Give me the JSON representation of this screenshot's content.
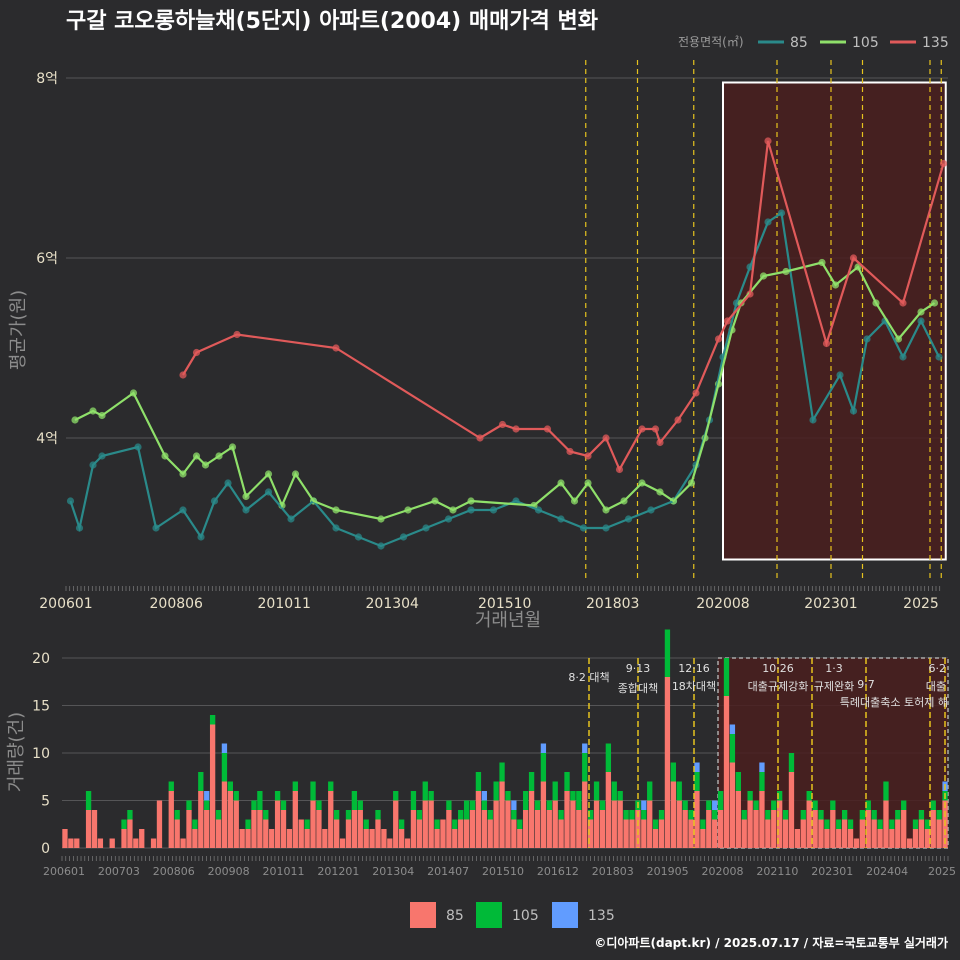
{
  "title": "구갈 코오롱하늘채(5단지) 아파트(2004) 매매가격 변화",
  "footer": "©디아파트(dapt.kr) / 2025.07.17 / 자료=국토교통부 실거래가",
  "colors": {
    "background": "#2b2b2d",
    "s85": "#2a8a8a",
    "s105": "#8fe06a",
    "s135": "#e05a5a",
    "bar85": "#f8766d",
    "bar105": "#00ba38",
    "bar135": "#619cff",
    "event_line": "#e6c31e",
    "highlight": "#4a1e1e"
  },
  "top_chart": {
    "ylabel": "평균가(원)",
    "xlabel": "거래년월",
    "y_ticks": [
      {
        "v": 4,
        "label": "4억"
      },
      {
        "v": 6,
        "label": "6억"
      },
      {
        "v": 8,
        "label": "8억"
      }
    ],
    "x_ticks": [
      "200601",
      "200806",
      "201011",
      "201304",
      "201510",
      "201803",
      "202008",
      "202301",
      "2025"
    ],
    "legend_title": "전용면적(㎡)",
    "legend": [
      "85",
      "105",
      "135"
    ]
  },
  "bottom_chart": {
    "ylabel": "거래량(건)",
    "y_ticks": [
      "0",
      "5",
      "10",
      "15",
      "20"
    ],
    "x_ticks": [
      "200601",
      "200703",
      "200806",
      "200908",
      "201011",
      "201201",
      "201304",
      "201407",
      "201510",
      "201612",
      "201803",
      "201905",
      "202008",
      "202110",
      "202301",
      "202404",
      "2025"
    ],
    "legend": [
      "85",
      "105",
      "135"
    ],
    "events": [
      {
        "date": "8·2",
        "text": "8·2 대책"
      },
      {
        "date": "9·13",
        "text": "종합대책"
      },
      {
        "date": "12·16",
        "text": "18차대책"
      },
      {
        "date": "10·26",
        "text": "대출규제강화"
      },
      {
        "date": "1·3",
        "text": "규제완화"
      },
      {
        "date": "9·7",
        "text": "특례대출축소 토허제 해"
      },
      {
        "date": "6·2",
        "text": "대출"
      }
    ]
  },
  "chart_data": [
    {
      "type": "line",
      "title": "구갈 코오롱하늘채(5단지) 아파트(2004) 매매가격 변화",
      "xlabel": "거래년월",
      "ylabel": "평균가(원)",
      "ylim": [
        2.4,
        8.2
      ],
      "xlim": [
        2006.0,
        2025.6
      ],
      "unit": "억",
      "series": [
        {
          "name": "85",
          "points": [
            [
              2006.1,
              3.3
            ],
            [
              2006.3,
              3.0
            ],
            [
              2006.6,
              3.7
            ],
            [
              2006.8,
              3.8
            ],
            [
              2007.6,
              3.9
            ],
            [
              2008.0,
              3.0
            ],
            [
              2008.6,
              3.2
            ],
            [
              2009.0,
              2.9
            ],
            [
              2009.3,
              3.3
            ],
            [
              2009.6,
              3.5
            ],
            [
              2010.0,
              3.2
            ],
            [
              2010.5,
              3.4
            ],
            [
              2011.0,
              3.1
            ],
            [
              2011.5,
              3.3
            ],
            [
              2012.0,
              3.0
            ],
            [
              2012.5,
              2.9
            ],
            [
              2013.0,
              2.8
            ],
            [
              2013.5,
              2.9
            ],
            [
              2014.0,
              3.0
            ],
            [
              2014.5,
              3.1
            ],
            [
              2015.0,
              3.2
            ],
            [
              2015.5,
              3.2
            ],
            [
              2016.0,
              3.3
            ],
            [
              2016.5,
              3.2
            ],
            [
              2017.0,
              3.1
            ],
            [
              2017.5,
              3.0
            ],
            [
              2018.0,
              3.0
            ],
            [
              2018.5,
              3.1
            ],
            [
              2019.0,
              3.2
            ],
            [
              2019.5,
              3.3
            ],
            [
              2020.0,
              3.7
            ],
            [
              2020.3,
              4.2
            ],
            [
              2020.6,
              4.9
            ],
            [
              2020.9,
              5.5
            ],
            [
              2021.2,
              5.9
            ],
            [
              2021.6,
              6.4
            ],
            [
              2021.9,
              6.5
            ],
            [
              2022.6,
              4.2
            ],
            [
              2023.2,
              4.7
            ],
            [
              2023.5,
              4.3
            ],
            [
              2023.8,
              5.1
            ],
            [
              2024.2,
              5.3
            ],
            [
              2024.6,
              4.9
            ],
            [
              2025.0,
              5.3
            ],
            [
              2025.4,
              4.9
            ]
          ]
        },
        {
          "name": "105",
          "points": [
            [
              2006.2,
              4.2
            ],
            [
              2006.6,
              4.3
            ],
            [
              2006.8,
              4.25
            ],
            [
              2007.5,
              4.5
            ],
            [
              2008.2,
              3.8
            ],
            [
              2008.6,
              3.6
            ],
            [
              2008.9,
              3.8
            ],
            [
              2009.1,
              3.7
            ],
            [
              2009.4,
              3.8
            ],
            [
              2009.7,
              3.9
            ],
            [
              2010.0,
              3.35
            ],
            [
              2010.5,
              3.6
            ],
            [
              2010.8,
              3.25
            ],
            [
              2011.1,
              3.6
            ],
            [
              2011.5,
              3.3
            ],
            [
              2012.0,
              3.2
            ],
            [
              2013.0,
              3.1
            ],
            [
              2013.6,
              3.2
            ],
            [
              2014.2,
              3.3
            ],
            [
              2014.6,
              3.2
            ],
            [
              2015.0,
              3.3
            ],
            [
              2016.4,
              3.25
            ],
            [
              2017.0,
              3.5
            ],
            [
              2017.3,
              3.3
            ],
            [
              2017.6,
              3.5
            ],
            [
              2018.0,
              3.2
            ],
            [
              2018.4,
              3.3
            ],
            [
              2018.8,
              3.5
            ],
            [
              2019.2,
              3.4
            ],
            [
              2019.5,
              3.3
            ],
            [
              2019.9,
              3.5
            ],
            [
              2020.2,
              4.0
            ],
            [
              2020.5,
              4.6
            ],
            [
              2020.8,
              5.2
            ],
            [
              2021.0,
              5.5
            ],
            [
              2021.5,
              5.8
            ],
            [
              2022.0,
              5.85
            ],
            [
              2022.8,
              5.95
            ],
            [
              2023.1,
              5.7
            ],
            [
              2023.6,
              5.9
            ],
            [
              2024.0,
              5.5
            ],
            [
              2024.5,
              5.1
            ],
            [
              2025.0,
              5.4
            ],
            [
              2025.3,
              5.5
            ]
          ]
        },
        {
          "name": "135",
          "points": [
            [
              2008.6,
              4.7
            ],
            [
              2008.9,
              4.95
            ],
            [
              2009.8,
              5.15
            ],
            [
              2012.0,
              5.0
            ],
            [
              2015.2,
              4.0
            ],
            [
              2015.7,
              4.15
            ],
            [
              2016.0,
              4.1
            ],
            [
              2016.7,
              4.1
            ],
            [
              2017.2,
              3.85
            ],
            [
              2017.6,
              3.8
            ],
            [
              2018.0,
              4.0
            ],
            [
              2018.3,
              3.65
            ],
            [
              2018.8,
              4.1
            ],
            [
              2019.1,
              4.1
            ],
            [
              2019.2,
              3.95
            ],
            [
              2019.6,
              4.2
            ],
            [
              2020.0,
              4.5
            ],
            [
              2020.5,
              5.1
            ],
            [
              2020.7,
              5.3
            ],
            [
              2021.2,
              5.6
            ],
            [
              2021.6,
              7.3
            ],
            [
              2022.9,
              5.05
            ],
            [
              2023.5,
              6.0
            ],
            [
              2024.6,
              5.5
            ],
            [
              2025.5,
              7.05
            ]
          ]
        }
      ]
    },
    {
      "type": "bar",
      "title": "거래량",
      "ylabel": "거래량(건)",
      "ylim": [
        0,
        20
      ],
      "unit": "건",
      "series": [
        {
          "name": "85",
          "values": [
            2,
            1,
            1,
            0,
            4,
            4,
            1,
            0,
            1,
            0,
            2,
            3,
            1,
            2,
            0,
            1,
            5,
            0,
            6,
            3,
            1,
            4,
            2,
            6,
            4,
            13,
            3,
            7,
            6,
            5,
            2,
            2,
            4,
            4,
            3,
            2,
            5,
            4,
            2,
            6,
            3,
            2,
            5,
            4,
            2,
            6,
            3,
            1,
            3,
            4,
            4,
            2,
            2,
            3,
            2,
            1,
            5,
            2,
            1,
            4,
            3,
            5,
            5,
            2,
            3,
            4,
            2,
            3,
            3,
            4,
            6,
            4,
            3,
            5,
            7,
            5,
            3,
            2,
            4,
            6,
            4,
            7,
            4,
            5,
            3,
            6,
            5,
            4,
            7,
            3,
            5,
            4,
            8,
            5,
            5,
            3,
            3,
            4,
            3,
            5,
            2,
            3,
            18,
            7,
            5,
            4,
            3,
            6,
            2,
            4,
            3,
            4,
            16,
            9,
            6,
            3,
            5,
            4,
            6,
            3,
            4,
            5,
            3,
            8,
            2,
            3,
            5,
            4,
            3,
            2,
            4,
            2,
            3,
            2,
            1,
            3,
            4,
            3,
            2,
            5,
            2,
            3,
            4,
            1,
            2,
            3,
            2,
            4,
            3,
            5
          ]
        },
        {
          "name": "105",
          "values": [
            0,
            0,
            0,
            0,
            2,
            0,
            0,
            0,
            0,
            0,
            1,
            1,
            0,
            0,
            0,
            0,
            0,
            0,
            1,
            1,
            0,
            1,
            1,
            2,
            1,
            1,
            1,
            3,
            1,
            1,
            0,
            1,
            1,
            2,
            1,
            0,
            1,
            1,
            0,
            1,
            0,
            1,
            2,
            1,
            0,
            1,
            1,
            0,
            1,
            2,
            1,
            1,
            0,
            1,
            0,
            0,
            1,
            1,
            0,
            2,
            1,
            2,
            1,
            1,
            0,
            1,
            1,
            1,
            2,
            1,
            2,
            1,
            1,
            2,
            2,
            1,
            1,
            1,
            2,
            2,
            1,
            3,
            1,
            2,
            1,
            2,
            1,
            2,
            3,
            1,
            2,
            1,
            3,
            2,
            1,
            1,
            1,
            1,
            1,
            2,
            1,
            1,
            5,
            2,
            2,
            1,
            1,
            2,
            1,
            1,
            1,
            2,
            4,
            3,
            2,
            1,
            1,
            1,
            2,
            1,
            1,
            1,
            1,
            2,
            0,
            1,
            1,
            1,
            1,
            1,
            1,
            1,
            1,
            1,
            0,
            1,
            1,
            1,
            1,
            2,
            1,
            1,
            1,
            0,
            1,
            1,
            1,
            1,
            1,
            1
          ]
        },
        {
          "name": "135",
          "values": [
            0,
            0,
            0,
            0,
            0,
            0,
            0,
            0,
            0,
            0,
            0,
            0,
            0,
            0,
            0,
            0,
            0,
            0,
            0,
            0,
            0,
            0,
            0,
            0,
            1,
            0,
            0,
            1,
            0,
            0,
            0,
            0,
            0,
            0,
            0,
            0,
            0,
            0,
            0,
            0,
            0,
            0,
            0,
            0,
            0,
            0,
            0,
            0,
            0,
            0,
            0,
            0,
            0,
            0,
            0,
            0,
            0,
            0,
            0,
            0,
            0,
            0,
            0,
            0,
            0,
            0,
            0,
            0,
            0,
            0,
            0,
            1,
            0,
            0,
            0,
            0,
            1,
            0,
            0,
            0,
            0,
            1,
            0,
            0,
            0,
            0,
            0,
            0,
            1,
            0,
            0,
            0,
            0,
            0,
            0,
            0,
            0,
            0,
            1,
            0,
            0,
            0,
            0,
            0,
            0,
            0,
            0,
            1,
            0,
            0,
            1,
            0,
            0,
            1,
            0,
            0,
            0,
            0,
            1,
            0,
            0,
            0,
            0,
            0,
            0,
            0,
            0,
            0,
            0,
            0,
            0,
            0,
            0,
            0,
            0,
            0,
            0,
            0,
            0,
            0,
            0,
            0,
            0,
            0,
            0,
            0,
            0,
            0,
            0,
            1
          ]
        }
      ]
    }
  ]
}
